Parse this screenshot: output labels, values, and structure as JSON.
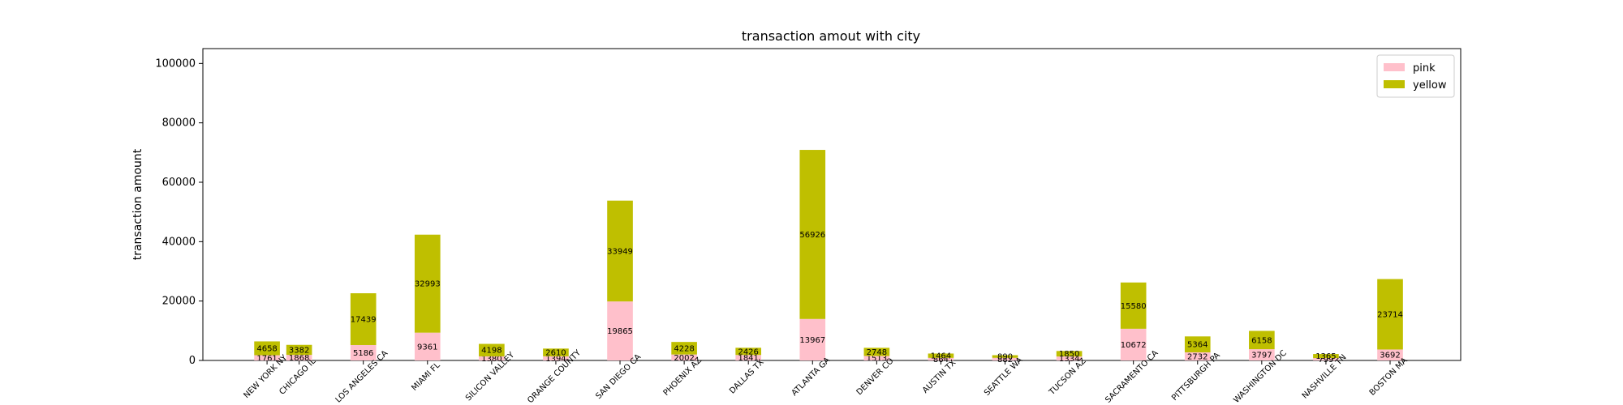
{
  "chart_data": {
    "type": "bar",
    "stacked": true,
    "title": "transaction amout with city",
    "xlabel": "",
    "ylabel": "transaction amount",
    "ylim": [
      0,
      105000
    ],
    "yticks": [
      0,
      20000,
      40000,
      60000,
      80000,
      100000
    ],
    "legend_position": "top-right",
    "grid": false,
    "categories": [
      "NEW YORK NY",
      "CHICAGO IL",
      "LOS ANGELES CA",
      "MIAMI FL",
      "SILICON VALLEY",
      "ORANGE COUNTY",
      "SAN DIEGO CA",
      "PHOENIX AZ",
      "DALLAS TX",
      "ATLANTA GA",
      "DENVER CO",
      "AUSTIN TX",
      "SEATTLE WA",
      "TUCSON AZ",
      "SACRAMENTO CA",
      "PITTSBURGH PA",
      "WASHINGTON DC",
      "NASHVILLE TN",
      "BOSTON MA"
    ],
    "positions": [
      0,
      1,
      3,
      5,
      7,
      9,
      11,
      13,
      15,
      17,
      19,
      21,
      23,
      25,
      27,
      29,
      31,
      33,
      35
    ],
    "series": [
      {
        "name": "pink",
        "color": "#ffc0cb",
        "values": [
          1761,
          1868,
          5186,
          9361,
          1380,
          1394,
          19865,
          2002,
          1841,
          13967,
          1513,
          864,
          882,
          1334,
          10672,
          2732,
          3797,
          799,
          3692
        ]
      },
      {
        "name": "yellow",
        "color": "#bfbf00",
        "values": [
          4658,
          3382,
          17439,
          32993,
          4198,
          2610,
          33949,
          4228,
          2426,
          56926,
          2748,
          1464,
          890,
          1850,
          15580,
          5364,
          6158,
          1365,
          23714
        ]
      }
    ]
  }
}
